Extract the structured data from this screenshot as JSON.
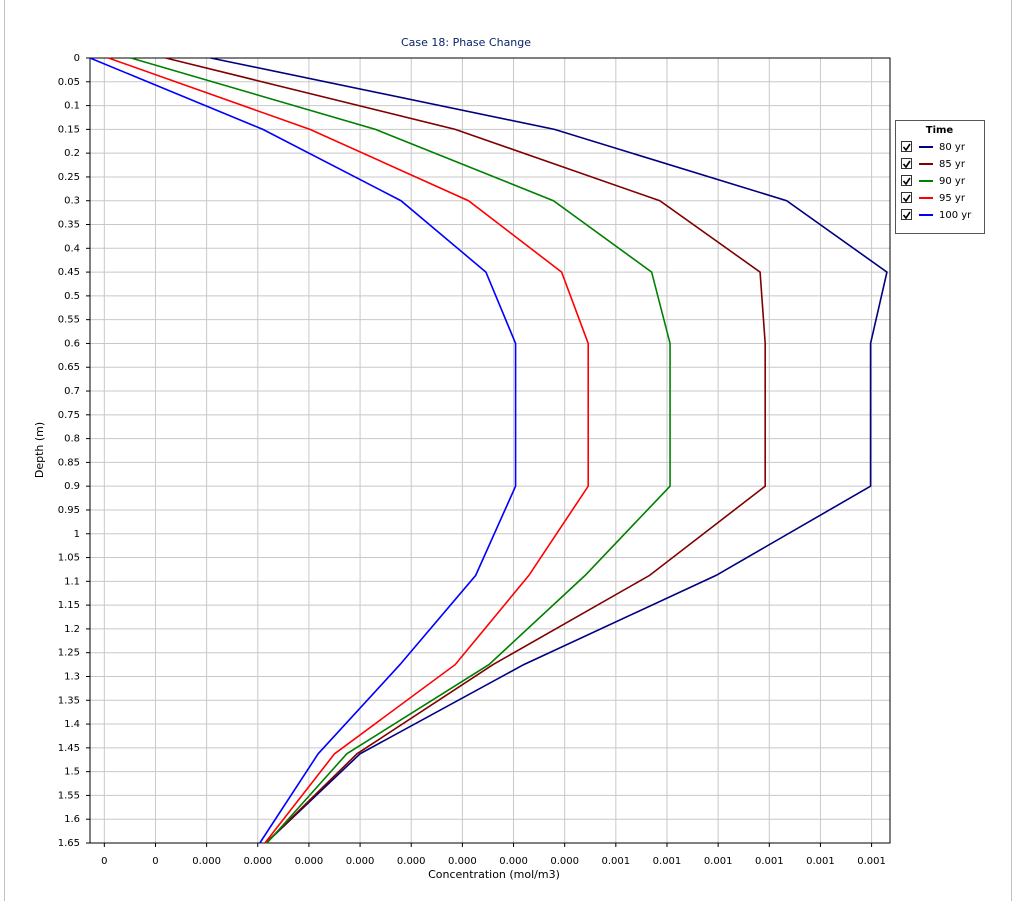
{
  "chart_data": {
    "type": "line",
    "orientation": "vertical-depth",
    "title": "Case 18: Phase Change",
    "x_label": "Concentration (mol/m3)",
    "y_label": "Depth (m)",
    "legend_title": "Time",
    "legend": "right",
    "grid": true,
    "y_inverted": true,
    "y": [
      0,
      0.15,
      0.3,
      0.45,
      0.6,
      0.9,
      1.0875,
      1.275,
      1.4625,
      1.65
    ],
    "series": [
      {
        "name": "80 yr",
        "color": "#000080",
        "values": [
          0.000104,
          0.00044,
          0.000667,
          0.000765,
          0.000749,
          0.000749,
          0.000598,
          0.00041,
          0.00025,
          0.000158
        ]
      },
      {
        "name": "85 yr",
        "color": "#800000",
        "values": [
          6e-05,
          0.000343,
          0.000543,
          0.000641,
          0.000646,
          0.000646,
          0.000533,
          0.00038,
          0.000247,
          0.000158
        ]
      },
      {
        "name": "90 yr",
        "color": "#008000",
        "values": [
          2.6e-05,
          0.000265,
          0.000439,
          0.000535,
          0.000553,
          0.000553,
          0.00047,
          0.000376,
          0.000237,
          0.000159
        ]
      },
      {
        "name": "95 yr",
        "color": "#ff0000",
        "values": [
          4e-06,
          0.000201,
          0.000356,
          0.000447,
          0.000473,
          0.000473,
          0.000415,
          0.000343,
          0.000225,
          0.000157
        ]
      },
      {
        "name": "100 yr",
        "color": "#0000ff",
        "values": [
          -1.4e-05,
          0.000155,
          0.00029,
          0.000373,
          0.000402,
          0.000402,
          0.000363,
          0.000289,
          0.000209,
          0.000152
        ]
      }
    ],
    "xlim": [
      -1.4e-05,
      0.000768
    ],
    "xticks": [
      {
        "value": 0,
        "label": "0"
      },
      {
        "value": 5e-05,
        "label": "0"
      },
      {
        "value": 0.0001,
        "label": "0.000"
      },
      {
        "value": 0.00015,
        "label": "0.000"
      },
      {
        "value": 0.0002,
        "label": "0.000"
      },
      {
        "value": 0.00025,
        "label": "0.000"
      },
      {
        "value": 0.0003,
        "label": "0.000"
      },
      {
        "value": 0.00035,
        "label": "0.000"
      },
      {
        "value": 0.0004,
        "label": "0.000"
      },
      {
        "value": 0.00045,
        "label": "0.000"
      },
      {
        "value": 0.0005,
        "label": "0.001"
      },
      {
        "value": 0.00055,
        "label": "0.001"
      },
      {
        "value": 0.0006,
        "label": "0.001"
      },
      {
        "value": 0.00065,
        "label": "0.001"
      },
      {
        "value": 0.0007,
        "label": "0.001"
      },
      {
        "value": 0.00075,
        "label": "0.001"
      }
    ],
    "ylim": [
      0,
      1.65
    ],
    "yticks": [
      0,
      0.05,
      0.1,
      0.15,
      0.2,
      0.25,
      0.3,
      0.35,
      0.4,
      0.45,
      0.5,
      0.55,
      0.6,
      0.65,
      0.7,
      0.75,
      0.8,
      0.85,
      0.9,
      0.95,
      1,
      1.05,
      1.1,
      1.15,
      1.2,
      1.25,
      1.3,
      1.35,
      1.4,
      1.45,
      1.5,
      1.55,
      1.6,
      1.65
    ]
  }
}
